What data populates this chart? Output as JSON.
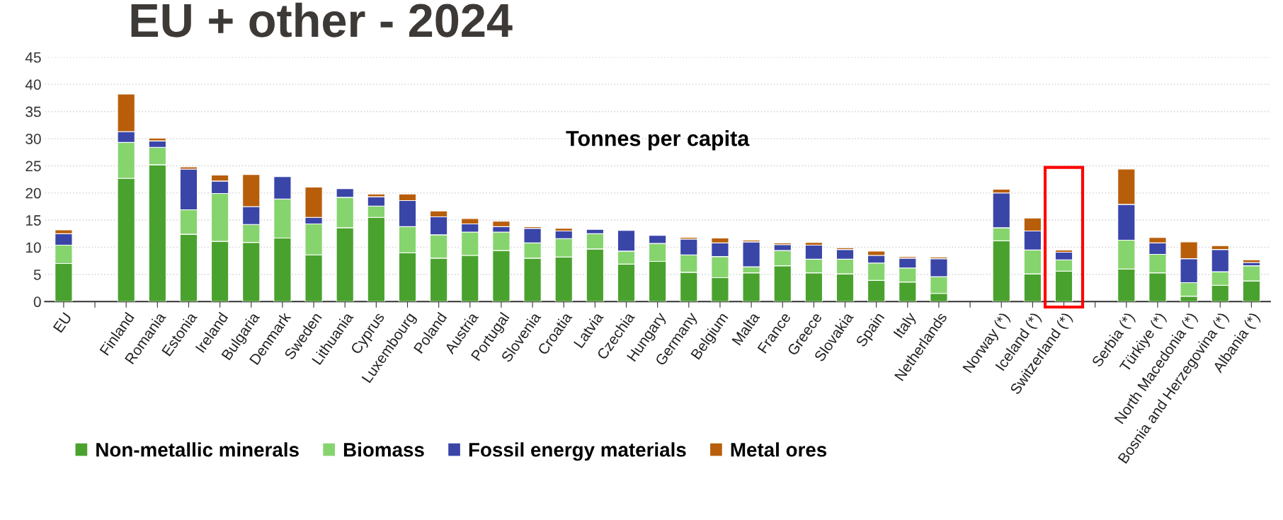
{
  "chart_data": {
    "type": "bar",
    "title": "EU + other - 2024",
    "subtitle": "Tonnes per capita",
    "stacked": true,
    "categories": [
      "EU",
      null,
      "Finland",
      "Romania",
      "Estonia",
      "Ireland",
      "Bulgaria",
      "Denmark",
      "Sweden",
      "Lithuania",
      "Cyprus",
      "Luxembourg",
      "Poland",
      "Austria",
      "Portugal",
      "Slovenia",
      "Croatia",
      "Latvia",
      "Czechia",
      "Hungary",
      "Germany",
      "Belgium",
      "Malta",
      "France",
      "Greece",
      "Slovakia",
      "Spain",
      "Italy",
      "Netherlands",
      null,
      "Norway (*)",
      "Iceland (*)",
      "Switzerland (*)",
      null,
      "Serbia (*)",
      "Türkiye (*)",
      "North Macedonia (*)",
      "Bosnia and Herzegovina (*)",
      "Albania (*)"
    ],
    "series": [
      {
        "name": "Non-metallic minerals",
        "color": "#4aa22e",
        "values": [
          7.0,
          null,
          22.7,
          25.2,
          12.4,
          11.1,
          10.9,
          11.7,
          8.6,
          13.6,
          15.5,
          9.0,
          8.0,
          8.5,
          9.4,
          8.0,
          8.2,
          9.7,
          6.9,
          7.4,
          5.4,
          4.4,
          5.3,
          6.6,
          5.3,
          5.1,
          3.9,
          3.6,
          1.5,
          null,
          11.2,
          5.1,
          5.6,
          null,
          6.0,
          5.3,
          1.0,
          3.0,
          3.8
        ]
      },
      {
        "name": "Biomass",
        "color": "#86d46e",
        "values": [
          3.4,
          null,
          6.6,
          3.2,
          4.5,
          8.8,
          3.3,
          7.2,
          5.7,
          5.6,
          2.1,
          4.8,
          4.3,
          4.3,
          3.4,
          2.8,
          3.4,
          2.8,
          2.4,
          3.3,
          3.2,
          3.9,
          1.1,
          2.8,
          2.5,
          2.7,
          3.2,
          2.6,
          3.1,
          null,
          2.4,
          4.4,
          2.1,
          null,
          5.3,
          3.4,
          2.5,
          2.5,
          2.8
        ]
      },
      {
        "name": "Fossil energy materials",
        "color": "#3a45a8",
        "values": [
          2.1,
          null,
          2.0,
          1.2,
          7.5,
          2.3,
          3.3,
          4.1,
          1.2,
          1.6,
          1.7,
          4.8,
          3.3,
          1.5,
          1.0,
          2.7,
          1.4,
          0.8,
          3.8,
          1.5,
          2.9,
          2.5,
          4.6,
          1.1,
          2.6,
          1.8,
          1.4,
          1.8,
          3.3,
          null,
          6.4,
          3.5,
          1.4,
          null,
          6.6,
          2.1,
          4.4,
          4.1,
          0.6
        ]
      },
      {
        "name": "Metal ores",
        "color": "#b85e0b",
        "values": [
          0.7,
          null,
          6.9,
          0.5,
          0.4,
          1.1,
          5.9,
          0,
          5.6,
          0,
          0.5,
          1.2,
          1.1,
          1.0,
          1.0,
          0.3,
          0.5,
          0,
          0,
          0,
          0.3,
          0.9,
          0.3,
          0.3,
          0.5,
          0.3,
          0.8,
          0.3,
          0.3,
          null,
          0.7,
          2.4,
          0.4,
          null,
          6.5,
          1.0,
          3.1,
          0.7,
          0.5
        ]
      }
    ],
    "ylim": [
      0,
      45
    ],
    "yticks": [
      0,
      5,
      10,
      15,
      20,
      25,
      30,
      35,
      40,
      45
    ],
    "grid": "y",
    "legend": "bottom"
  }
}
